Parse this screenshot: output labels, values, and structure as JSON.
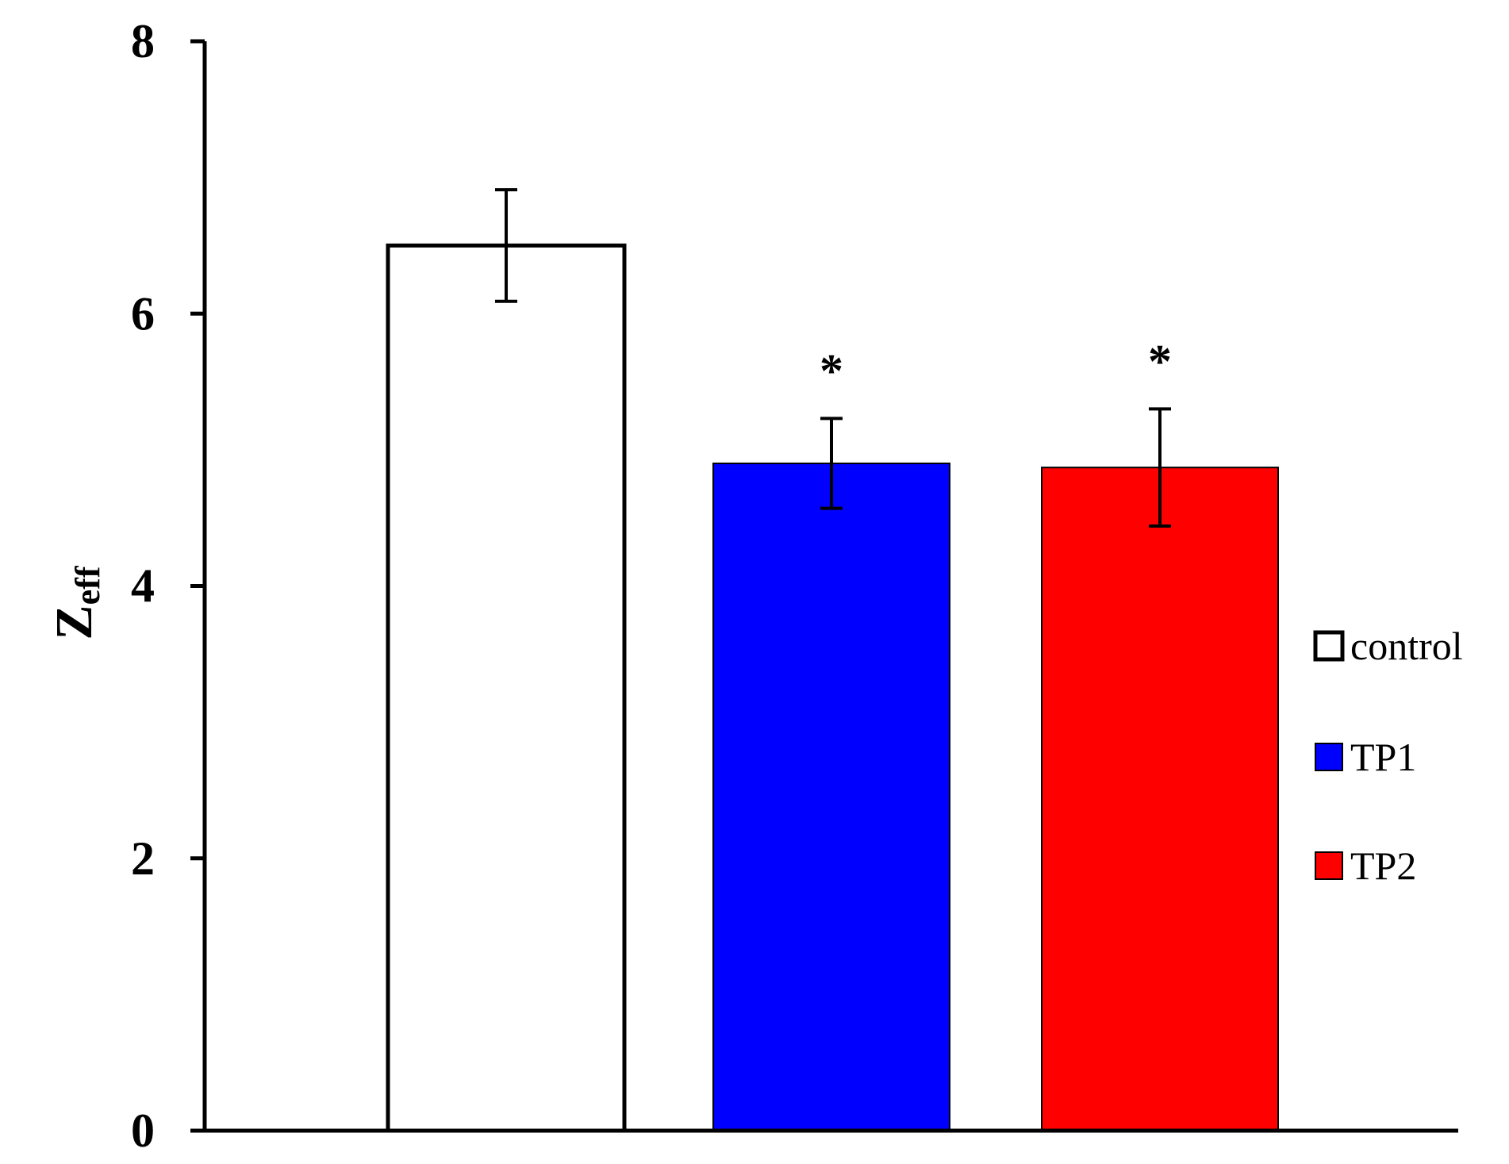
{
  "chart_data": {
    "type": "bar",
    "title": "",
    "xlabel": "",
    "ylabel": {
      "main": "Z",
      "subscript": "eff"
    },
    "ylim": [
      0,
      8
    ],
    "yticks": [
      "0",
      "2",
      "4",
      "6",
      "8"
    ],
    "grid": false,
    "legend_position": "right",
    "categories": [
      "control",
      "TP1",
      "TP2"
    ],
    "values": [
      6.5,
      4.9,
      4.87
    ],
    "errors": [
      0.41,
      0.33,
      0.43
    ],
    "colors": [
      "#ffffff",
      "#0000ff",
      "#ff0000"
    ],
    "annotations": [
      "",
      "*",
      "*"
    ],
    "legend": [
      {
        "label": "control",
        "color": "#ffffff"
      },
      {
        "label": "TP1",
        "color": "#0000ff"
      },
      {
        "label": "TP2",
        "color": "#ff0000"
      }
    ]
  }
}
